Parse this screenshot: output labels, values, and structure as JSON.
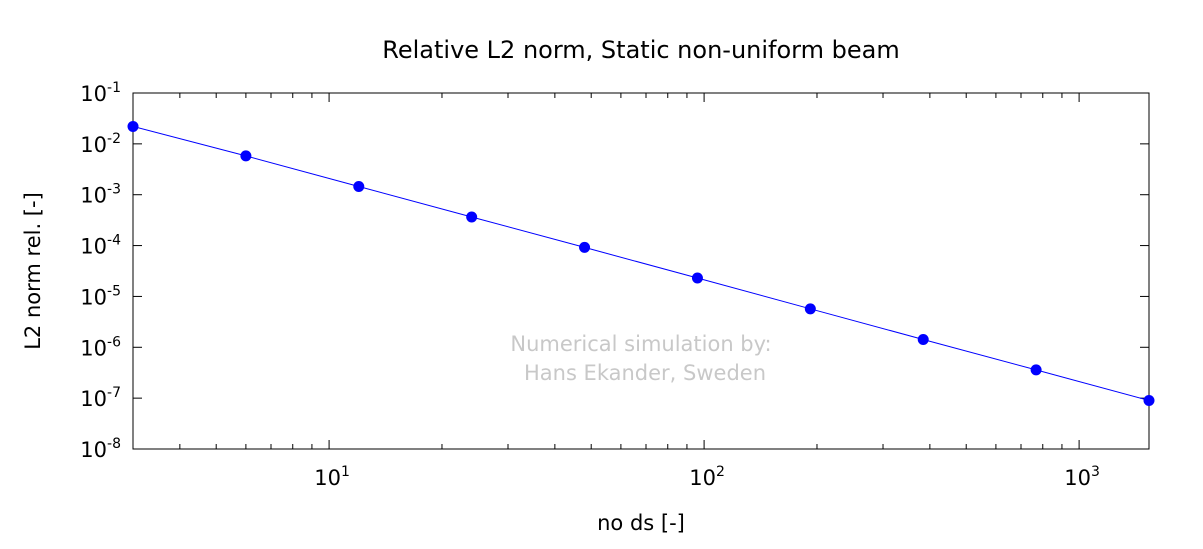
{
  "chart_data": {
    "type": "line",
    "title": "Relative L2 norm, Static non-uniform beam",
    "xlabel": "no ds [-]",
    "ylabel": "L2 norm rel. [-]",
    "xscale": "log",
    "yscale": "log",
    "xlim": [
      3,
      1536
    ],
    "ylim": [
      1e-08,
      0.1
    ],
    "grid": false,
    "x_ticks": [
      {
        "base": "10",
        "exp": "1",
        "value": 10
      },
      {
        "base": "10",
        "exp": "2",
        "value": 100
      },
      {
        "base": "10",
        "exp": "3",
        "value": 1000
      }
    ],
    "y_ticks": [
      {
        "base": "10",
        "exp": "-1",
        "value": 0.1
      },
      {
        "base": "10",
        "exp": "-2",
        "value": 0.01
      },
      {
        "base": "10",
        "exp": "-3",
        "value": 0.001
      },
      {
        "base": "10",
        "exp": "-4",
        "value": 0.0001
      },
      {
        "base": "10",
        "exp": "-5",
        "value": 1e-05
      },
      {
        "base": "10",
        "exp": "-6",
        "value": 1e-06
      },
      {
        "base": "10",
        "exp": "-7",
        "value": 1e-07
      },
      {
        "base": "10",
        "exp": "-8",
        "value": 1e-08
      }
    ],
    "series": [
      {
        "color": "#0000ff",
        "x": [
          3,
          6,
          12,
          24,
          48,
          96,
          192,
          384,
          768,
          1536
        ],
        "y": [
          0.022,
          0.0058,
          0.00145,
          0.000365,
          9.2e-05,
          2.3e-05,
          5.7e-06,
          1.42e-06,
          3.6e-07,
          9e-08
        ]
      }
    ],
    "annotation": [
      "Numerical simulation by:",
      "Hans Ekander, Sweden"
    ],
    "annotation_color": "#c8c8c8"
  }
}
